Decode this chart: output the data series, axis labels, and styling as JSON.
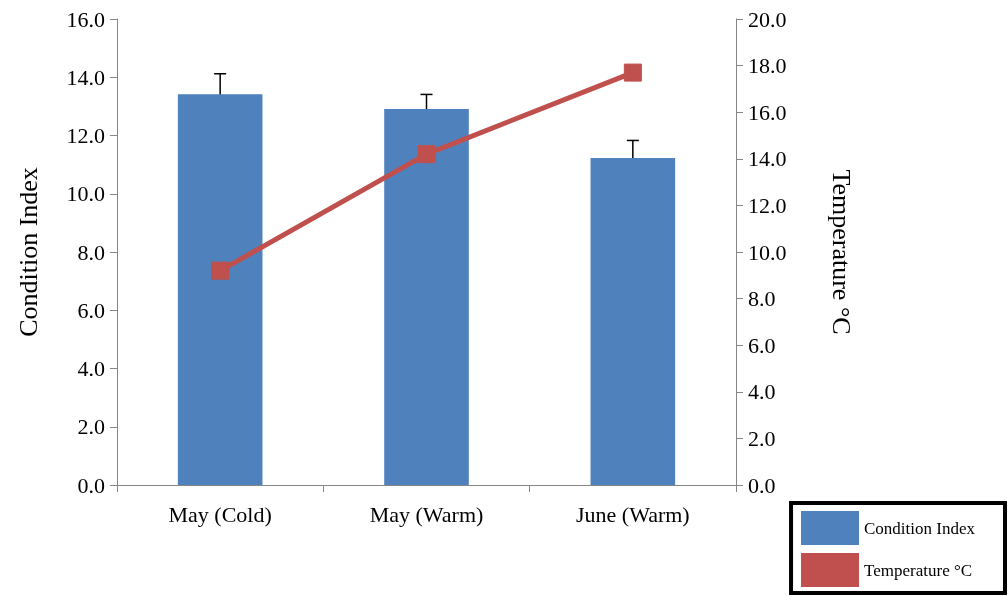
{
  "chart_data": {
    "type": "bar",
    "categories": [
      "May (Cold)",
      "May (Warm)",
      "June (Warm)"
    ],
    "ylabel": "Condition Index",
    "y2label": "Temperature °C",
    "series": [
      {
        "name": "Condition Index",
        "color": "#4f81bd",
        "values": [
          13.42,
          12.91,
          11.23
        ],
        "errors": [
          0.7,
          0.5,
          0.6
        ]
      },
      {
        "name": "Temperature °C",
        "type": "line",
        "axis": "y2",
        "color": "#c0504d",
        "values": [
          9.2,
          14.2,
          17.7
        ],
        "marker": "square"
      }
    ],
    "ylim": [
      0,
      16
    ],
    "yticks": [
      {
        "value": 0,
        "label": "0.0"
      },
      {
        "value": 2,
        "label": "2.0"
      },
      {
        "value": 4,
        "label": "4.0"
      },
      {
        "value": 6,
        "label": "6.0"
      },
      {
        "value": 8,
        "label": "8.0"
      },
      {
        "value": 10,
        "label": "10.0"
      },
      {
        "value": 12,
        "label": "12.0"
      },
      {
        "value": 14,
        "label": "14.0"
      },
      {
        "value": 16,
        "label": "16.0"
      }
    ],
    "y2lim": [
      0,
      20
    ],
    "y2ticks": [
      {
        "value": 0,
        "label": "0.0"
      },
      {
        "value": 2,
        "label": "2.0"
      },
      {
        "value": 4,
        "label": "4.0"
      },
      {
        "value": 6,
        "label": "6.0"
      },
      {
        "value": 8,
        "label": "8.0"
      },
      {
        "value": 10,
        "label": "10.0"
      },
      {
        "value": 12,
        "label": "12.0"
      },
      {
        "value": 14,
        "label": "14.0"
      },
      {
        "value": 16,
        "label": "16.0"
      },
      {
        "value": 18,
        "label": "18.0"
      },
      {
        "value": 20,
        "label": "20.0"
      }
    ],
    "legend": "bottom right",
    "grid": false
  }
}
